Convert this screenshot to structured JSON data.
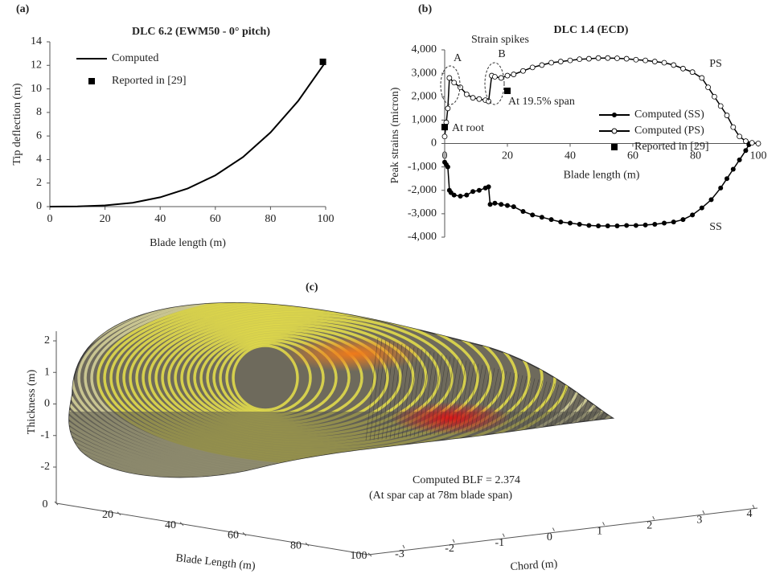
{
  "chart_data": [
    {
      "type": "line",
      "label": "(a)",
      "title": "DLC 6.2 (EWM50 - 0° pitch)",
      "x_label": "Blade length (m)",
      "y_label": "Tip deflection (m)",
      "xlim": [
        0,
        100
      ],
      "ylim": [
        0,
        14
      ],
      "xticks": [
        0,
        20,
        40,
        60,
        80,
        100
      ],
      "yticks": [
        0,
        2,
        4,
        6,
        8,
        10,
        12,
        14
      ],
      "legend": "top-left",
      "series": [
        {
          "name": "Computed",
          "color": "#000000",
          "line": true,
          "marker": "none",
          "x": [
            0,
            10,
            20,
            30,
            40,
            50,
            60,
            70,
            80,
            90,
            100
          ],
          "values": [
            0,
            0.02,
            0.1,
            0.33,
            0.79,
            1.54,
            2.66,
            4.2,
            6.3,
            8.97,
            12.3
          ]
        },
        {
          "name": "Reported in [29]",
          "color": "#000000",
          "line": false,
          "marker": "square",
          "x": [
            99
          ],
          "values": [
            12.3
          ]
        }
      ]
    },
    {
      "type": "line",
      "label": "(b)",
      "title": "DLC 1.4 (ECD)",
      "x_label": "Blade length (m)",
      "y_label": "Peak strains (micron)",
      "xlim": [
        0,
        100
      ],
      "ylim": [
        -4000,
        4000
      ],
      "xticks": [
        0,
        20,
        40,
        60,
        80,
        100
      ],
      "yticks": [
        {
          "value": 4000,
          "label": "4,000"
        },
        {
          "value": 3000,
          "label": "3,000"
        },
        {
          "value": 2000,
          "label": "2,000"
        },
        {
          "value": 1000,
          "label": "1,000"
        },
        0,
        {
          "value": -1000,
          "label": "-1,000"
        },
        {
          "value": -2000,
          "label": "-2,000"
        },
        {
          "value": -3000,
          "label": "-3,000"
        },
        {
          "value": -4000,
          "label": "-4,000"
        }
      ],
      "legend": "right",
      "annotations": [
        "Strain spikes",
        "A",
        "B",
        "At root",
        "At 19.5% span",
        "PS",
        "SS"
      ],
      "series": [
        {
          "name": "Computed (SS)",
          "color": "#000000",
          "line": true,
          "marker": "circle-filled",
          "x": [
            0,
            0.5,
            1,
            1.5,
            2,
            3,
            5,
            7,
            9,
            11,
            13,
            14,
            14.5,
            16,
            18,
            20,
            22,
            25,
            28,
            31,
            34,
            37,
            40,
            43,
            46,
            49,
            52,
            55,
            58,
            61,
            64,
            67,
            70,
            73,
            76,
            79,
            82,
            85,
            88,
            90,
            92,
            94,
            96,
            97
          ],
          "values": [
            -800,
            -900,
            -1000,
            -2000,
            -2100,
            -2200,
            -2250,
            -2200,
            -2050,
            -2000,
            -1900,
            -1850,
            -2600,
            -2550,
            -2600,
            -2650,
            -2700,
            -2900,
            -3050,
            -3150,
            -3250,
            -3350,
            -3400,
            -3450,
            -3500,
            -3520,
            -3520,
            -3520,
            -3500,
            -3500,
            -3480,
            -3450,
            -3400,
            -3350,
            -3250,
            -3050,
            -2750,
            -2400,
            -1900,
            -1500,
            -1100,
            -700,
            -300,
            -50
          ]
        },
        {
          "name": "Computed (PS)",
          "color": "#000000",
          "line": true,
          "marker": "circle-open",
          "x": [
            0,
            0.5,
            1,
            1.5,
            3,
            5,
            7,
            9,
            11,
            13,
            14,
            15,
            16,
            18,
            20,
            22,
            25,
            28,
            31,
            34,
            37,
            40,
            43,
            46,
            49,
            52,
            55,
            58,
            61,
            64,
            67,
            70,
            73,
            76,
            79,
            82,
            84,
            86,
            88,
            90,
            92,
            94,
            96,
            98,
            100
          ],
          "values": [
            300,
            900,
            1500,
            2800,
            2600,
            2400,
            2100,
            1950,
            1900,
            1850,
            1800,
            2900,
            2850,
            2800,
            2900,
            2950,
            3100,
            3250,
            3350,
            3450,
            3500,
            3550,
            3600,
            3620,
            3650,
            3650,
            3640,
            3620,
            3580,
            3550,
            3500,
            3450,
            3350,
            3200,
            3050,
            2800,
            2400,
            2000,
            1600,
            1200,
            700,
            300,
            100,
            30,
            0
          ]
        },
        {
          "name": "Reported in [29]",
          "color": "#000000",
          "line": false,
          "marker": "square",
          "x": [
            0,
            20
          ],
          "values": [
            700,
            2250
          ]
        }
      ]
    },
    {
      "type": "surface3d",
      "label": "(c)",
      "x_label": "Blade Length (m)",
      "y_label": "Thickness (m)",
      "z_label": "Chord (m)",
      "xlim": [
        0,
        100
      ],
      "ylim": [
        -2,
        2
      ],
      "zlim": [
        -3,
        4
      ],
      "xticks": [
        0,
        20,
        40,
        60,
        80,
        100
      ],
      "yticks": [
        -2,
        -1,
        0,
        1,
        2
      ],
      "zticks": [
        -3,
        -2,
        -1,
        0,
        1,
        2,
        3,
        4
      ],
      "annotations": [
        "Computed BLF =  2.374",
        "(At spar cap at 78m blade span)"
      ]
    }
  ]
}
